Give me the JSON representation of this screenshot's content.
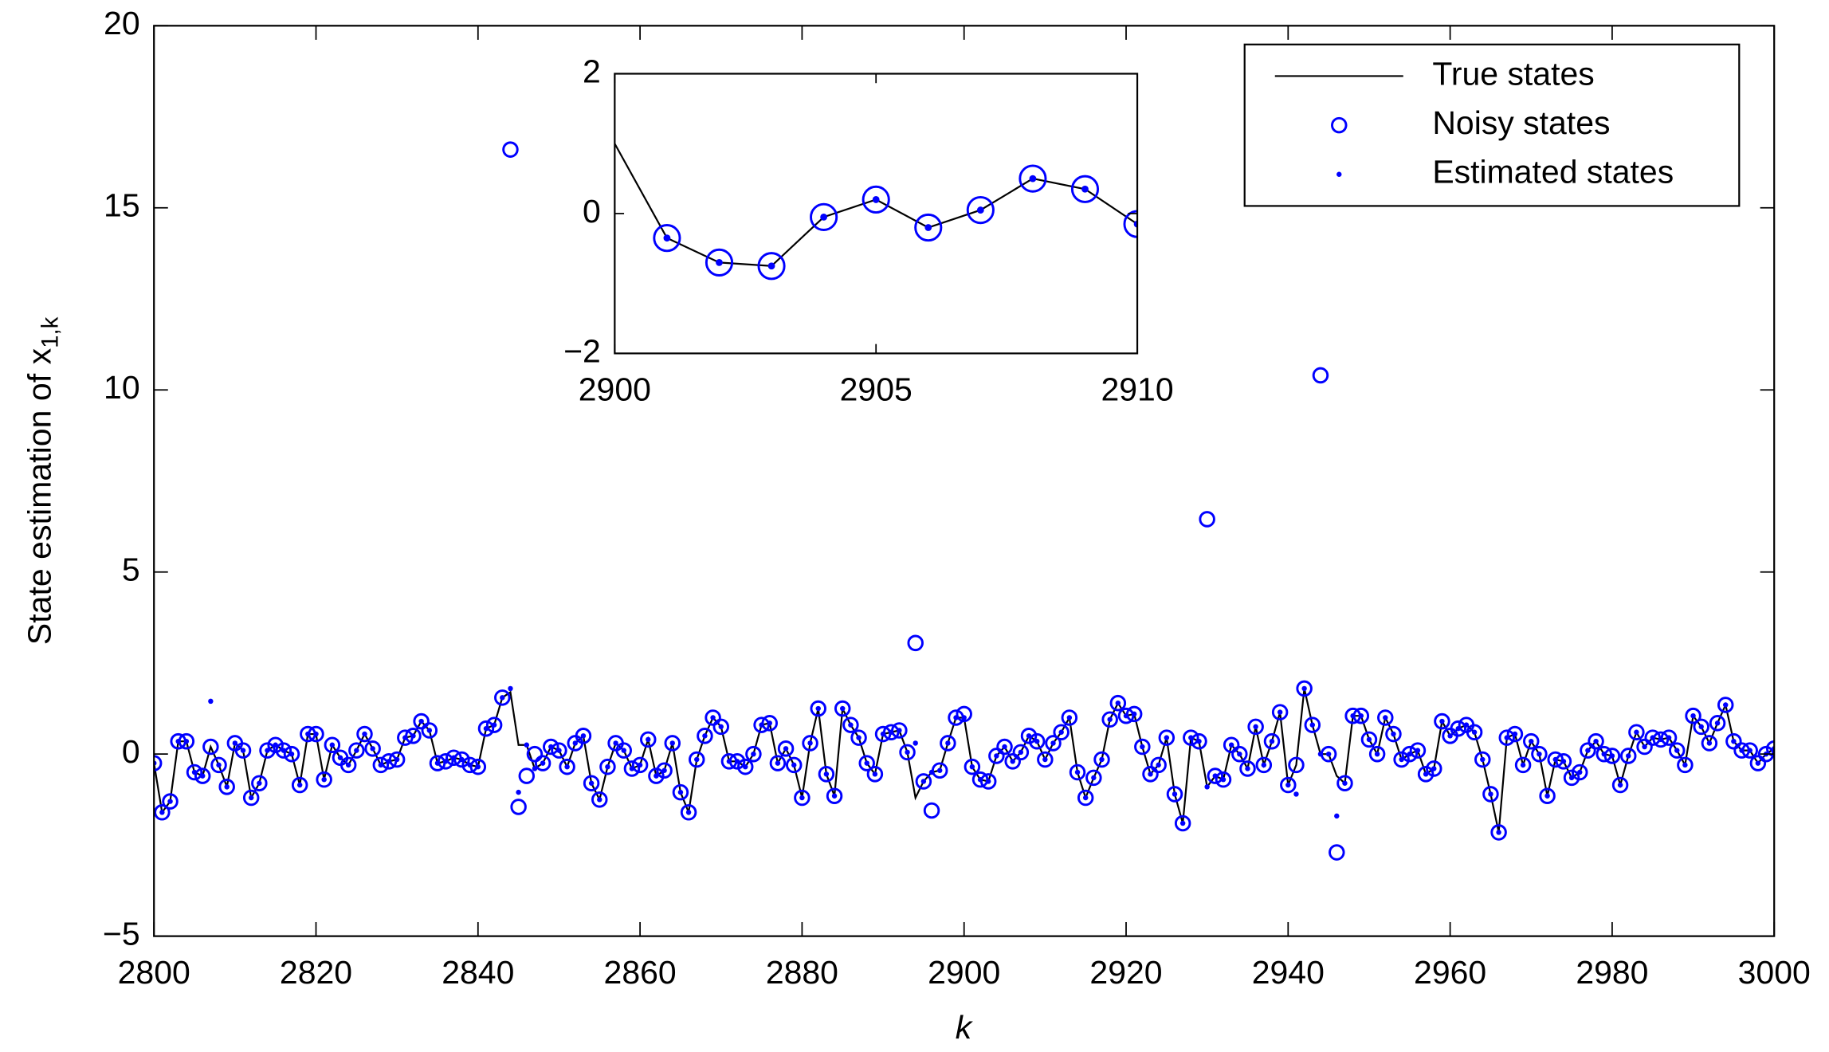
{
  "chart_data": [
    {
      "type": "line",
      "xlabel": "k",
      "ylabel": {
        "text": "State estimation of x",
        "subscript": "1,k"
      },
      "xlim": [
        2800,
        3000
      ],
      "xticks": [
        2800,
        2820,
        2840,
        2860,
        2880,
        2900,
        2920,
        2940,
        2960,
        2980,
        3000
      ],
      "ylim": [
        -5,
        20
      ],
      "yticks": [
        {
          "value": -5,
          "label": "−5"
        },
        0,
        5,
        10,
        15,
        20
      ],
      "grid": false,
      "legend": "upper right",
      "x": [
        2800,
        2801,
        2802,
        2803,
        2804,
        2805,
        2806,
        2807,
        2808,
        2809,
        2810,
        2811,
        2812,
        2813,
        2814,
        2815,
        2816,
        2817,
        2818,
        2819,
        2820,
        2821,
        2822,
        2823,
        2824,
        2825,
        2826,
        2827,
        2828,
        2829,
        2830,
        2831,
        2832,
        2833,
        2834,
        2835,
        2836,
        2837,
        2838,
        2839,
        2840,
        2841,
        2842,
        2843,
        2844,
        2845,
        2846,
        2847,
        2848,
        2849,
        2850,
        2851,
        2852,
        2853,
        2854,
        2855,
        2856,
        2857,
        2858,
        2859,
        2860,
        2861,
        2862,
        2863,
        2864,
        2865,
        2866,
        2867,
        2868,
        2869,
        2870,
        2871,
        2872,
        2873,
        2874,
        2875,
        2876,
        2877,
        2878,
        2879,
        2880,
        2881,
        2882,
        2883,
        2884,
        2885,
        2886,
        2887,
        2888,
        2889,
        2890,
        2891,
        2892,
        2893,
        2894,
        2895,
        2896,
        2897,
        2898,
        2899,
        2900,
        2901,
        2902,
        2903,
        2904,
        2905,
        2906,
        2907,
        2908,
        2909,
        2910,
        2911,
        2912,
        2913,
        2914,
        2915,
        2916,
        2917,
        2918,
        2919,
        2920,
        2921,
        2922,
        2923,
        2924,
        2925,
        2926,
        2927,
        2928,
        2929,
        2930,
        2931,
        2932,
        2933,
        2934,
        2935,
        2936,
        2937,
        2938,
        2939,
        2940,
        2941,
        2942,
        2943,
        2944,
        2945,
        2946,
        2947,
        2948,
        2949,
        2950,
        2951,
        2952,
        2953,
        2954,
        2955,
        2956,
        2957,
        2958,
        2959,
        2960,
        2961,
        2962,
        2963,
        2964,
        2965,
        2966,
        2967,
        2968,
        2969,
        2970,
        2971,
        2972,
        2973,
        2974,
        2975,
        2976,
        2977,
        2978,
        2979,
        2980,
        2981,
        2982,
        2983,
        2984,
        2985,
        2986,
        2987,
        2988,
        2989,
        2990,
        2991,
        2992,
        2993,
        2994,
        2995,
        2996,
        2997,
        2998,
        2999,
        3000
      ],
      "series": [
        {
          "name": "True states",
          "marker": "line",
          "color": "#000000",
          "values": [
            -0.25,
            -1.6,
            -1.3,
            0.35,
            0.35,
            -0.5,
            -0.6,
            0.2,
            -0.3,
            -0.9,
            0.3,
            0.1,
            -1.2,
            -0.8,
            0.1,
            0.25,
            0.1,
            0.0,
            -0.85,
            0.55,
            0.55,
            -0.7,
            0.25,
            -0.1,
            -0.3,
            0.1,
            0.55,
            0.15,
            -0.3,
            -0.2,
            -0.15,
            0.45,
            0.5,
            0.9,
            0.65,
            -0.25,
            -0.2,
            -0.1,
            -0.15,
            -0.3,
            -0.35,
            0.7,
            0.8,
            1.55,
            1.7,
            0.25,
            0.25,
            -0.4,
            -0.25,
            0.2,
            0.1,
            -0.35,
            0.3,
            0.5,
            -0.8,
            -1.25,
            -0.35,
            0.3,
            0.1,
            -0.4,
            -0.3,
            0.4,
            -0.6,
            -0.45,
            0.3,
            -1.05,
            -1.6,
            -0.15,
            0.5,
            1.0,
            0.75,
            -0.2,
            -0.2,
            -0.35,
            0.0,
            0.8,
            0.85,
            -0.25,
            0.15,
            -0.3,
            -1.2,
            0.3,
            1.25,
            -0.55,
            -1.15,
            1.25,
            0.8,
            0.45,
            -0.25,
            -0.55,
            0.55,
            0.6,
            0.65,
            0.05,
            -1.2,
            -0.75,
            -0.5,
            -0.45,
            0.3,
            1.0,
            1.0,
            -0.35,
            -0.7,
            -0.75,
            -0.05,
            0.2,
            -0.2,
            0.05,
            0.5,
            0.35,
            -0.15,
            0.3,
            0.6,
            1.0,
            -0.5,
            -1.2,
            -0.65,
            -0.15,
            0.95,
            1.4,
            1.05,
            1.1,
            0.2,
            -0.55,
            -0.3,
            0.45,
            -1.1,
            -1.9,
            0.45,
            0.35,
            -0.9,
            -0.6,
            -0.7,
            0.25,
            0.0,
            -0.4,
            0.75,
            -0.3,
            0.35,
            1.15,
            -0.85,
            -0.3,
            1.8,
            0.8,
            0.0,
            0.0,
            -0.6,
            -0.8,
            1.05,
            1.05,
            0.4,
            0.0,
            1.0,
            0.55,
            -0.15,
            0.0,
            0.1,
            -0.55,
            -0.4,
            0.9,
            0.5,
            0.7,
            0.8,
            0.6,
            -0.15,
            -1.1,
            -2.15,
            0.45,
            0.55,
            -0.3,
            0.35,
            0.0,
            -1.15,
            -0.15,
            -0.2,
            -0.65,
            -0.5,
            0.1,
            0.35,
            0.0,
            -0.05,
            -0.85,
            -0.05,
            0.6,
            0.2,
            0.45,
            0.4,
            0.45,
            0.1,
            -0.3,
            1.05,
            0.75,
            0.3,
            0.85,
            1.35,
            0.35,
            0.1,
            0.1,
            -0.25,
            0.0,
            0.15
          ]
        },
        {
          "name": "Noisy states",
          "marker": "o",
          "color": "#0000ff",
          "values": [
            -0.25,
            -1.6,
            -1.3,
            0.35,
            0.35,
            -0.5,
            -0.6,
            0.2,
            -0.3,
            -0.9,
            0.3,
            0.1,
            -1.2,
            -0.8,
            0.1,
            0.25,
            0.1,
            0.0,
            -0.85,
            0.55,
            0.55,
            -0.7,
            0.25,
            -0.1,
            -0.3,
            0.1,
            0.55,
            0.15,
            -0.3,
            -0.2,
            -0.15,
            0.45,
            0.5,
            0.9,
            0.65,
            -0.25,
            -0.2,
            -0.1,
            -0.15,
            -0.3,
            -0.35,
            0.7,
            0.8,
            1.55,
            16.6,
            -1.45,
            -0.6,
            0.0,
            -0.25,
            0.2,
            0.1,
            -0.35,
            0.3,
            0.5,
            -0.8,
            -1.25,
            -0.35,
            0.3,
            0.1,
            -0.4,
            -0.3,
            0.4,
            -0.6,
            -0.45,
            0.3,
            -1.05,
            -1.6,
            -0.15,
            0.5,
            1.0,
            0.75,
            -0.2,
            -0.2,
            -0.35,
            0.0,
            0.8,
            0.85,
            -0.25,
            0.15,
            -0.3,
            -1.2,
            0.3,
            1.25,
            -0.55,
            -1.15,
            1.25,
            0.8,
            0.45,
            -0.25,
            -0.55,
            0.55,
            0.6,
            0.65,
            0.05,
            3.05,
            -0.75,
            -1.55,
            -0.45,
            0.3,
            1.0,
            1.1,
            -0.35,
            -0.7,
            -0.75,
            -0.05,
            0.2,
            -0.2,
            0.05,
            0.5,
            0.35,
            -0.15,
            0.3,
            0.6,
            1.0,
            -0.5,
            -1.2,
            -0.65,
            -0.15,
            0.95,
            1.4,
            1.05,
            1.1,
            0.2,
            -0.55,
            -0.3,
            0.45,
            -1.1,
            -1.9,
            0.45,
            0.35,
            6.45,
            -0.6,
            -0.7,
            0.25,
            0.0,
            -0.4,
            0.75,
            -0.3,
            0.35,
            1.15,
            -0.85,
            -0.3,
            1.8,
            0.8,
            10.4,
            0.0,
            -2.7,
            -0.8,
            1.05,
            1.05,
            0.4,
            0.0,
            1.0,
            0.55,
            -0.15,
            0.0,
            0.1,
            -0.55,
            -0.4,
            0.9,
            0.5,
            0.7,
            0.8,
            0.6,
            -0.15,
            -1.1,
            -2.15,
            0.45,
            0.55,
            -0.3,
            0.35,
            0.0,
            -1.15,
            -0.15,
            -0.2,
            -0.65,
            -0.5,
            0.1,
            0.35,
            0.0,
            -0.05,
            -0.85,
            -0.05,
            0.6,
            0.2,
            0.45,
            0.4,
            0.45,
            0.1,
            -0.3,
            1.05,
            0.75,
            0.3,
            0.85,
            1.35,
            0.35,
            0.1,
            0.1,
            -0.25,
            0.0,
            0.15
          ]
        },
        {
          "name": "Estimated states",
          "marker": ".",
          "color": "#0000ff",
          "values": [
            -0.25,
            -1.6,
            -1.3,
            0.35,
            0.35,
            -0.5,
            -0.6,
            1.45,
            -0.3,
            -0.9,
            0.3,
            0.1,
            -1.2,
            -0.8,
            0.1,
            0.25,
            0.1,
            0.0,
            -0.85,
            0.55,
            0.55,
            -0.7,
            0.25,
            -0.1,
            -0.3,
            0.1,
            0.55,
            0.15,
            -0.3,
            -0.2,
            -0.15,
            0.45,
            0.5,
            0.9,
            0.65,
            -0.25,
            -0.2,
            -0.1,
            -0.15,
            -0.3,
            -0.35,
            0.7,
            0.8,
            1.55,
            1.8,
            -1.05,
            0.25,
            -0.4,
            -0.25,
            0.2,
            0.1,
            -0.35,
            0.3,
            0.5,
            -0.8,
            -1.25,
            -0.35,
            0.3,
            0.1,
            -0.4,
            -0.3,
            0.4,
            -0.6,
            -0.45,
            0.3,
            -1.05,
            -1.6,
            -0.15,
            0.5,
            1.0,
            0.75,
            -0.2,
            -0.2,
            -0.35,
            0.0,
            0.8,
            0.85,
            -0.25,
            0.15,
            -0.3,
            -1.2,
            0.3,
            1.25,
            -0.55,
            -1.15,
            1.25,
            0.8,
            0.45,
            -0.25,
            -0.55,
            0.55,
            0.6,
            0.65,
            0.05,
            0.3,
            -0.75,
            -0.5,
            -0.45,
            0.3,
            1.0,
            1.0,
            -0.35,
            -0.7,
            -0.75,
            -0.05,
            0.2,
            -0.2,
            0.05,
            0.5,
            0.35,
            -0.15,
            0.3,
            0.6,
            1.0,
            -0.5,
            -1.2,
            -0.65,
            -0.15,
            0.95,
            1.4,
            1.05,
            1.1,
            0.2,
            -0.55,
            -0.3,
            0.45,
            -1.1,
            -1.9,
            0.45,
            0.35,
            -0.9,
            -0.6,
            -0.7,
            0.25,
            0.0,
            -0.4,
            0.75,
            -0.3,
            0.35,
            1.15,
            -0.85,
            -1.1,
            1.8,
            0.8,
            0.0,
            0.0,
            -1.7,
            -0.8,
            1.05,
            1.05,
            0.4,
            0.0,
            1.0,
            0.55,
            -0.15,
            0.0,
            0.1,
            -0.55,
            -0.4,
            0.9,
            0.5,
            0.7,
            0.8,
            0.6,
            -0.15,
            -1.1,
            -2.15,
            0.45,
            0.55,
            -0.3,
            0.35,
            0.0,
            -1.15,
            -0.15,
            -0.2,
            -0.65,
            -0.5,
            0.1,
            0.35,
            0.0,
            -0.05,
            -0.85,
            -0.05,
            0.6,
            0.2,
            0.45,
            0.4,
            0.45,
            0.1,
            -0.3,
            1.05,
            0.75,
            0.3,
            0.85,
            1.35,
            0.35,
            0.1,
            0.1,
            -0.25,
            0.0,
            0.15
          ]
        }
      ]
    },
    {
      "type": "line",
      "xlim": [
        2900,
        2910
      ],
      "xticks": [
        2900,
        2905,
        2910
      ],
      "ylim": [
        -2,
        2
      ],
      "yticks": [
        {
          "value": -2,
          "label": "−2"
        },
        0,
        2
      ],
      "grid": false,
      "x": [
        2900,
        2901,
        2902,
        2903,
        2904,
        2905,
        2906,
        2907,
        2908,
        2909,
        2910
      ],
      "series": [
        {
          "marker": "line",
          "color": "#000000",
          "values": [
            1.0,
            -0.35,
            -0.7,
            -0.75,
            -0.05,
            0.2,
            -0.2,
            0.05,
            0.5,
            0.35,
            -0.15
          ]
        },
        {
          "marker": "o",
          "color": "#0000ff",
          "values": [
            null,
            -0.35,
            -0.7,
            -0.75,
            -0.05,
            0.2,
            -0.2,
            0.05,
            0.5,
            0.35,
            -0.15
          ]
        },
        {
          "marker": ".",
          "color": "#0000ff",
          "values": [
            null,
            -0.35,
            -0.7,
            -0.75,
            -0.05,
            0.2,
            -0.2,
            0.05,
            0.5,
            0.35,
            -0.15
          ]
        }
      ]
    }
  ]
}
